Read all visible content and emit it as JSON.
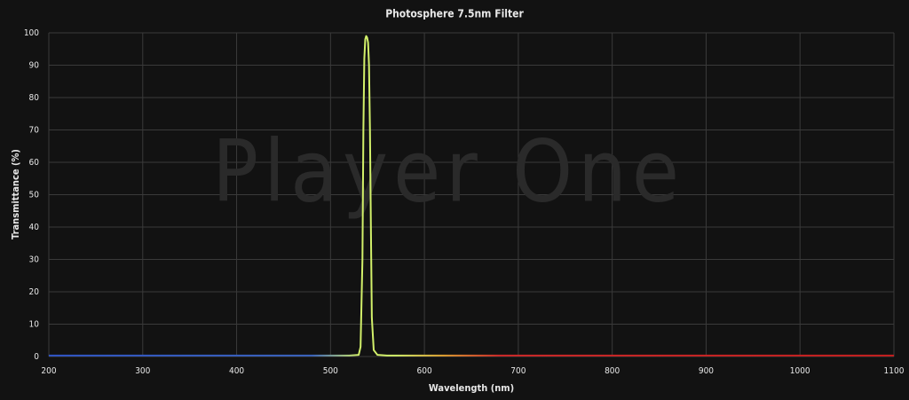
{
  "chart_data": {
    "type": "line",
    "title": "Photosphere 7.5nm Filter",
    "watermark": "Player One",
    "x_label": "Wavelength (nm)",
    "y_label": "Transmittance (%)",
    "xlim": [
      200,
      1100
    ],
    "ylim": [
      0,
      100
    ],
    "xticks": [
      200,
      300,
      400,
      500,
      600,
      700,
      800,
      900,
      1000,
      1100
    ],
    "yticks": [
      0,
      10,
      20,
      30,
      40,
      50,
      60,
      70,
      80,
      90,
      100
    ],
    "grid": true,
    "color_stops": [
      {
        "x": 200,
        "color": "#2f55c8"
      },
      {
        "x": 480,
        "color": "#3a64c0"
      },
      {
        "x": 530,
        "color": "#d2f06a"
      },
      {
        "x": 570,
        "color": "#d2f06a"
      },
      {
        "x": 620,
        "color": "#e0a030"
      },
      {
        "x": 680,
        "color": "#d02828"
      },
      {
        "x": 1100,
        "color": "#c81e1e"
      }
    ],
    "series": [
      {
        "name": "Transmittance",
        "x": [
          200,
          300,
          400,
          500,
          520,
          530,
          532,
          534,
          535,
          536,
          537,
          538,
          539,
          540,
          541,
          542,
          543,
          544,
          546,
          550,
          560,
          600,
          700,
          800,
          900,
          1000,
          1100
        ],
        "values": [
          0.3,
          0.3,
          0.3,
          0.3,
          0.3,
          0.5,
          3,
          30,
          70,
          92,
          98,
          99,
          98.5,
          97,
          90,
          70,
          40,
          12,
          2,
          0.5,
          0.3,
          0.3,
          0.3,
          0.3,
          0.3,
          0.3,
          0.3
        ]
      }
    ]
  }
}
